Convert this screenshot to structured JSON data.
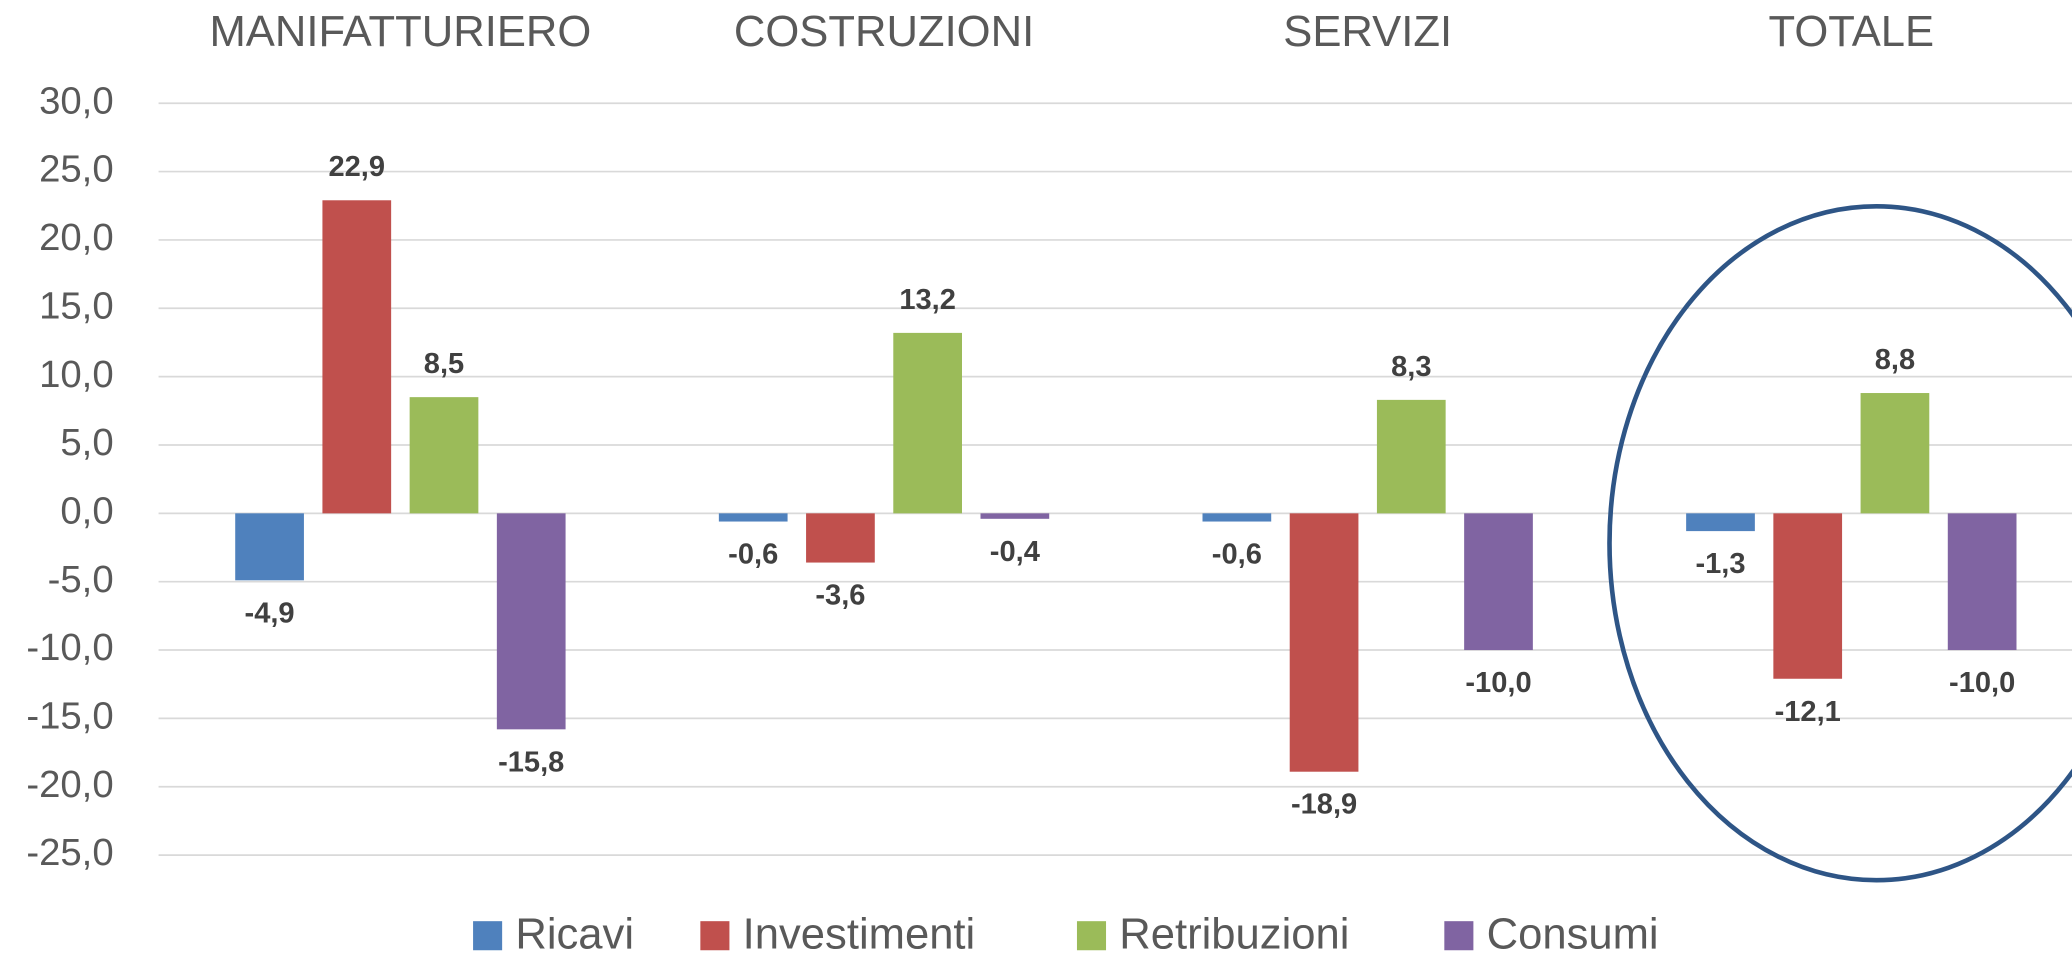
{
  "chart_data": {
    "type": "bar",
    "categories": [
      "MANIFATTURIERO",
      "COSTRUZIONI",
      "SERVIZI",
      "TOTALE"
    ],
    "series": [
      {
        "name": "Ricavi",
        "color": "#4f81bd",
        "values": [
          -4.9,
          -0.6,
          -0.6,
          -1.3
        ],
        "value_labels": [
          "-4,9",
          "-0,6",
          "-0,6",
          "-1,3"
        ]
      },
      {
        "name": "Investimenti",
        "color": "#c0504d",
        "values": [
          22.9,
          -3.6,
          -18.9,
          -12.1
        ],
        "value_labels": [
          "22,9",
          "-3,6",
          "-18,9",
          "-12,1"
        ]
      },
      {
        "name": "Retribuzioni",
        "color": "#9bbb59",
        "values": [
          8.5,
          13.2,
          8.3,
          8.8
        ],
        "value_labels": [
          "8,5",
          "13,2",
          "8,3",
          "8,8"
        ]
      },
      {
        "name": "Consumi",
        "color": "#8064a2",
        "values": [
          -15.8,
          -0.4,
          -10.0,
          -10.0
        ],
        "value_labels": [
          "-15,8",
          "-0,4",
          "-10,0",
          "-10,0"
        ]
      }
    ],
    "ylim": [
      -25,
      30
    ],
    "yticks": [
      {
        "value": 30,
        "label": "30,0"
      },
      {
        "value": 25,
        "label": "25,0"
      },
      {
        "value": 20,
        "label": "20,0"
      },
      {
        "value": 15,
        "label": "15,0"
      },
      {
        "value": 10,
        "label": "10,0"
      },
      {
        "value": 5,
        "label": "5,0"
      },
      {
        "value": 0,
        "label": "0,0"
      },
      {
        "value": -5,
        "label": "-5,0"
      },
      {
        "value": -10,
        "label": "-10,0"
      },
      {
        "value": -15,
        "label": "-15,0"
      },
      {
        "value": -20,
        "label": "-20,0"
      },
      {
        "value": -25,
        "label": "-25,0"
      }
    ],
    "grid": true,
    "legend": "bottom"
  }
}
